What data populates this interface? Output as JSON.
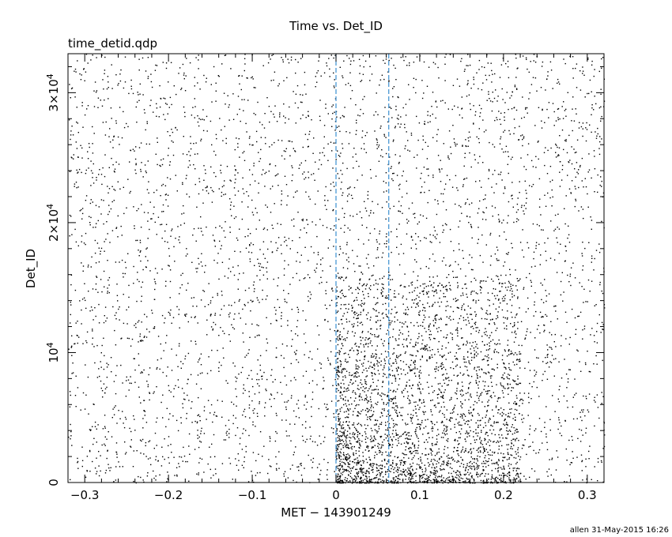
{
  "chart_data": {
    "type": "scatter",
    "title": "Time vs. Det_ID",
    "subtitle": "time_detid.qdp",
    "xlabel": "MET − 143901249",
    "ylabel": "Det_ID",
    "xlim": [
      -0.32,
      0.32
    ],
    "ylim": [
      0,
      33000
    ],
    "x_ticks": [
      -0.3,
      -0.2,
      -0.1,
      0,
      0.1,
      0.2,
      0.3
    ],
    "x_tick_labels": [
      "−0.3",
      "−0.2",
      "−0.1",
      "0",
      "0.1",
      "0.2",
      "0.3"
    ],
    "y_ticks": [
      0,
      10000,
      20000,
      30000
    ],
    "y_tick_labels": [
      {
        "base": "0",
        "exp": ""
      },
      {
        "base": "10",
        "exp": "4"
      },
      {
        "base": "2×10",
        "exp": "4"
      },
      {
        "base": "3×10",
        "exp": "4"
      }
    ],
    "vertical_markers": [
      0.0,
      0.063
    ],
    "marker_color": "#3a8fd0",
    "point_color": "#000000",
    "grid": false,
    "legend": "none",
    "point_density": {
      "background_points": 4200,
      "burst_points": 2600,
      "burst_x_range": [
        0.0,
        0.22
      ],
      "burst_y_concentration": "low Det_ID (0 to ~14000)"
    }
  },
  "footer": {
    "credit": "allen 31-May-2015 16:26"
  }
}
